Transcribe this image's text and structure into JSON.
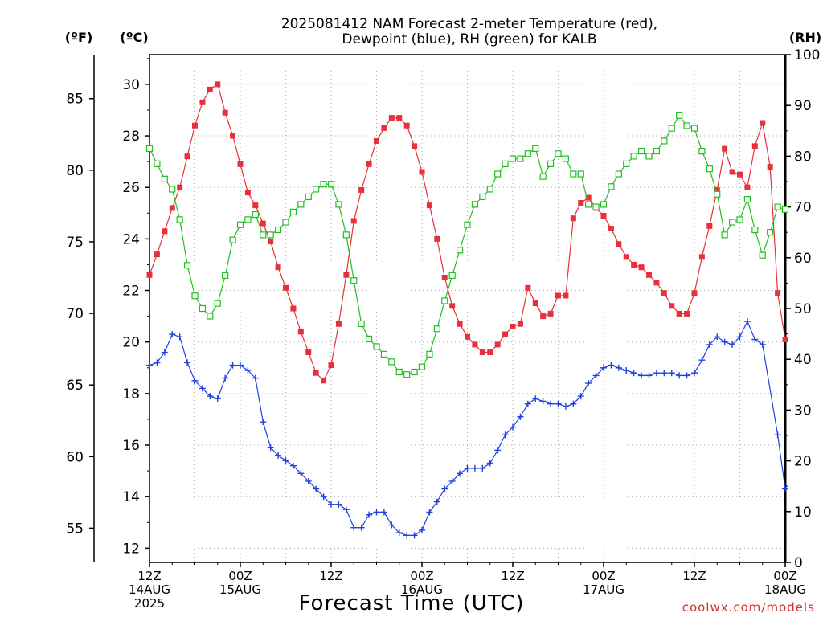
{
  "chart_data": {
    "type": "line",
    "title": [
      "2025081412 NAM Forecast 2-meter Temperature (red),",
      "Dewpoint (blue), RH (green) for KALB"
    ],
    "xlabel": "Forecast Time (UTC)",
    "credit": "coolwx.com/models",
    "unit_labels": {
      "fahrenheit": "(ºF)",
      "celsius": "(ºC)",
      "rh": "(RH)"
    },
    "x_range_hours": [
      0,
      84
    ],
    "celsius_range": [
      11.45,
      31.15
    ],
    "rh_range": [
      0,
      100
    ],
    "x_ticks": [
      {
        "hour": 0,
        "lines": [
          "12Z",
          "14AUG",
          "2025"
        ]
      },
      {
        "hour": 12,
        "lines": [
          "00Z",
          "15AUG"
        ]
      },
      {
        "hour": 24,
        "lines": [
          "12Z"
        ]
      },
      {
        "hour": 36,
        "lines": [
          "00Z",
          "16AUG"
        ]
      },
      {
        "hour": 48,
        "lines": [
          "12Z"
        ]
      },
      {
        "hour": 60,
        "lines": [
          "00Z",
          "17AUG"
        ]
      },
      {
        "hour": 72,
        "lines": [
          "12Z"
        ]
      },
      {
        "hour": 84,
        "lines": [
          "00Z",
          "18AUG"
        ]
      }
    ],
    "celsius_ticks": [
      "12",
      "14",
      "16",
      "18",
      "20",
      "22",
      "24",
      "26",
      "28",
      "30"
    ],
    "fahrenheit_ticks": [
      "55",
      "60",
      "65",
      "70",
      "75",
      "80",
      "85"
    ],
    "rh_ticks": [
      "0",
      "10",
      "20",
      "30",
      "40",
      "50",
      "60",
      "70",
      "80",
      "90",
      "100"
    ],
    "grid": true,
    "series": [
      {
        "name": "Temperature",
        "unit": "C",
        "color": "#e8303a",
        "marker": "filled-square",
        "values": [
          22.6,
          23.4,
          24.3,
          25.2,
          26.0,
          27.2,
          28.4,
          29.3,
          29.8,
          30.0,
          28.9,
          28.0,
          26.9,
          25.8,
          25.3,
          24.6,
          23.9,
          22.9,
          22.1,
          21.3,
          20.4,
          19.6,
          18.8,
          18.5,
          19.1,
          20.7,
          22.6,
          24.7,
          25.9,
          26.9,
          27.8,
          28.3,
          28.7,
          28.7,
          28.4,
          27.6,
          26.6,
          25.3,
          24.0,
          22.5,
          21.4,
          20.7,
          20.2,
          19.9,
          19.6,
          19.6,
          19.9,
          20.3,
          20.6,
          20.7,
          22.1,
          21.5,
          21.0,
          21.1,
          21.8,
          21.8,
          24.8,
          25.4,
          25.6,
          25.2,
          24.9,
          24.4,
          23.8,
          23.3,
          23.0,
          22.9,
          22.6,
          22.3,
          21.9,
          21.4,
          21.1,
          21.1,
          21.9,
          23.3,
          24.5,
          25.9,
          27.5,
          26.6,
          26.5,
          26.0,
          27.6,
          28.5,
          26.8,
          21.9,
          20.1
        ],
        "sample_x_hours": [
          0,
          1,
          2,
          3,
          4,
          5,
          6,
          7,
          8,
          9,
          10,
          11,
          12,
          13,
          14,
          15,
          16,
          17,
          18,
          19,
          20,
          21,
          22,
          23,
          24,
          25,
          26,
          27,
          28,
          29,
          30,
          31,
          32,
          33,
          34,
          35,
          36,
          37,
          38,
          39,
          40,
          41,
          42,
          43,
          44,
          45,
          46,
          47,
          48,
          49,
          50,
          51,
          52,
          53,
          54,
          55,
          56,
          57,
          58,
          59,
          60,
          61,
          62,
          63,
          64,
          65,
          66,
          67,
          68,
          69,
          70,
          71,
          72,
          73,
          74,
          75,
          76,
          77,
          78,
          79,
          80,
          81,
          82,
          83,
          84
        ]
      },
      {
        "name": "Dewpoint",
        "unit": "C",
        "color": "#2040e0",
        "marker": "plus",
        "values": [
          19.1,
          19.2,
          19.6,
          20.3,
          20.2,
          19.2,
          18.5,
          18.2,
          17.9,
          17.8,
          18.6,
          19.1,
          19.1,
          18.9,
          18.6,
          16.9,
          15.9,
          15.6,
          15.4,
          15.2,
          14.9,
          14.6,
          14.3,
          14.0,
          13.7,
          13.7,
          13.5,
          12.8,
          12.8,
          13.3,
          13.4,
          13.4,
          12.9,
          12.6,
          12.5,
          12.5,
          12.7,
          13.4,
          13.8,
          14.3,
          14.6,
          14.9,
          15.1,
          15.1,
          15.1,
          15.3,
          15.8,
          16.4,
          16.7,
          17.1,
          17.6,
          17.8,
          17.7,
          17.6,
          17.6,
          17.5,
          17.6,
          17.9,
          18.4,
          18.7,
          19.0,
          19.1,
          19.0,
          18.9,
          18.8,
          18.7,
          18.7,
          18.8,
          18.8,
          18.8,
          18.7,
          18.7,
          18.8,
          19.3,
          19.9,
          20.2,
          20.0,
          19.9,
          20.2,
          20.8,
          20.1,
          19.9,
          16.4,
          14.3
        ],
        "sample_x_hours": [
          0,
          1,
          2,
          3,
          4,
          5,
          6,
          7,
          8,
          9,
          10,
          11,
          12,
          13,
          14,
          15,
          16,
          17,
          18,
          19,
          20,
          21,
          22,
          23,
          24,
          25,
          26,
          27,
          28,
          29,
          30,
          31,
          32,
          33,
          34,
          35,
          36,
          37,
          38,
          39,
          40,
          41,
          42,
          43,
          44,
          45,
          46,
          47,
          48,
          49,
          50,
          51,
          52,
          53,
          54,
          55,
          56,
          57,
          58,
          59,
          60,
          61,
          62,
          63,
          64,
          65,
          66,
          67,
          68,
          69,
          70,
          71,
          72,
          73,
          74,
          75,
          76,
          77,
          78,
          79,
          80,
          81,
          83,
          84
        ]
      },
      {
        "name": "RH",
        "unit": "%",
        "color": "#20c020",
        "marker": "hollow-square",
        "values": [
          81.5,
          78.5,
          75.5,
          73.5,
          67.5,
          58.5,
          52.5,
          50.0,
          48.5,
          51.0,
          56.5,
          63.5,
          66.5,
          67.5,
          68.5,
          64.5,
          64.5,
          65.5,
          67.0,
          69.0,
          70.5,
          72.0,
          73.5,
          74.5,
          74.5,
          70.5,
          64.5,
          55.5,
          47.0,
          44.0,
          42.5,
          41.0,
          39.5,
          37.5,
          37.0,
          37.5,
          38.5,
          41.0,
          46.0,
          51.5,
          56.5,
          61.5,
          66.5,
          70.5,
          72.0,
          73.5,
          76.5,
          78.5,
          79.5,
          79.5,
          80.5,
          81.5,
          76.0,
          78.5,
          80.5,
          79.5,
          76.5,
          76.5,
          70.5,
          70.0,
          70.5,
          74.0,
          76.5,
          78.5,
          80.0,
          81.0,
          80.0,
          81.0,
          83.0,
          85.5,
          88.0,
          86.0,
          85.5,
          81.0,
          77.5,
          72.5,
          64.5,
          67.0,
          67.5,
          71.5,
          65.5,
          60.5,
          65.0,
          70.0,
          69.5
        ],
        "sample_x_hours": [
          0,
          1,
          2,
          3,
          4,
          5,
          6,
          7,
          8,
          9,
          10,
          11,
          12,
          13,
          14,
          15,
          16,
          17,
          18,
          19,
          20,
          21,
          22,
          23,
          24,
          25,
          26,
          27,
          28,
          29,
          30,
          31,
          32,
          33,
          34,
          35,
          36,
          37,
          38,
          39,
          40,
          41,
          42,
          43,
          44,
          45,
          46,
          47,
          48,
          49,
          50,
          51,
          52,
          53,
          54,
          55,
          56,
          57,
          58,
          59,
          60,
          61,
          62,
          63,
          64,
          65,
          66,
          67,
          68,
          69,
          70,
          71,
          72,
          73,
          74,
          75,
          76,
          77,
          78,
          79,
          80,
          81,
          82,
          83,
          84
        ]
      }
    ]
  }
}
